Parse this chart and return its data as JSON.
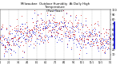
{
  "title": "Milwaukee  Outdoor Humidity  At Daily High\nTemperature\n(Past Year)",
  "title_fontsize": 2.8,
  "bg_color": "#ffffff",
  "plot_bg": "#ffffff",
  "ylim": [
    0,
    100
  ],
  "yticks": [
    10,
    20,
    30,
    40,
    50,
    60,
    70,
    80,
    90,
    100
  ],
  "ytick_fontsize": 2.5,
  "xtick_fontsize": 2.0,
  "grid_color": "#bbbbbb",
  "blue_color": "#0000cc",
  "red_color": "#cc0000",
  "num_points": 365,
  "seed": 42,
  "x_date_labels": [
    "1/1",
    "2/1",
    "3/1",
    "4/1",
    "5/1",
    "6/1",
    "7/1",
    "8/1",
    "9/1",
    "10/1",
    "11/1",
    "12/1",
    "1/1"
  ],
  "n_gridlines": 12
}
